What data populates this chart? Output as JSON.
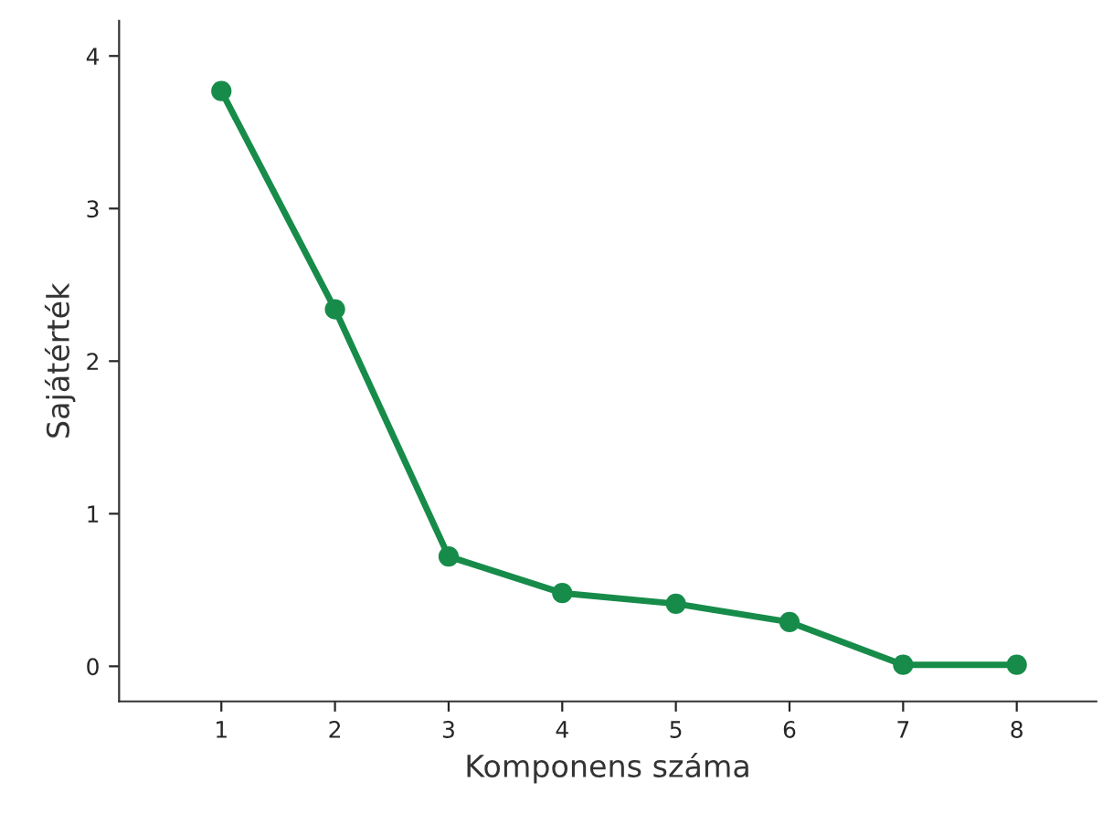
{
  "chart_data": {
    "type": "line",
    "xlabel": "Komponens száma",
    "ylabel": "Sajátérték",
    "x": [
      1,
      2,
      3,
      4,
      5,
      6,
      7,
      8
    ],
    "series": [
      {
        "color": "#178c4a",
        "values": [
          3.77,
          2.34,
          0.72,
          0.48,
          0.41,
          0.29,
          0.01,
          0.01
        ]
      }
    ],
    "xlim": [
      0.1,
      8.7
    ],
    "ylim": [
      -0.23,
      4.23
    ],
    "xticks": [
      1,
      2,
      3,
      4,
      5,
      6,
      7,
      8
    ],
    "yticks": [
      0,
      1,
      2,
      3,
      4
    ],
    "marker": "circle",
    "line_style": "solid",
    "grid": false,
    "legend": false
  }
}
